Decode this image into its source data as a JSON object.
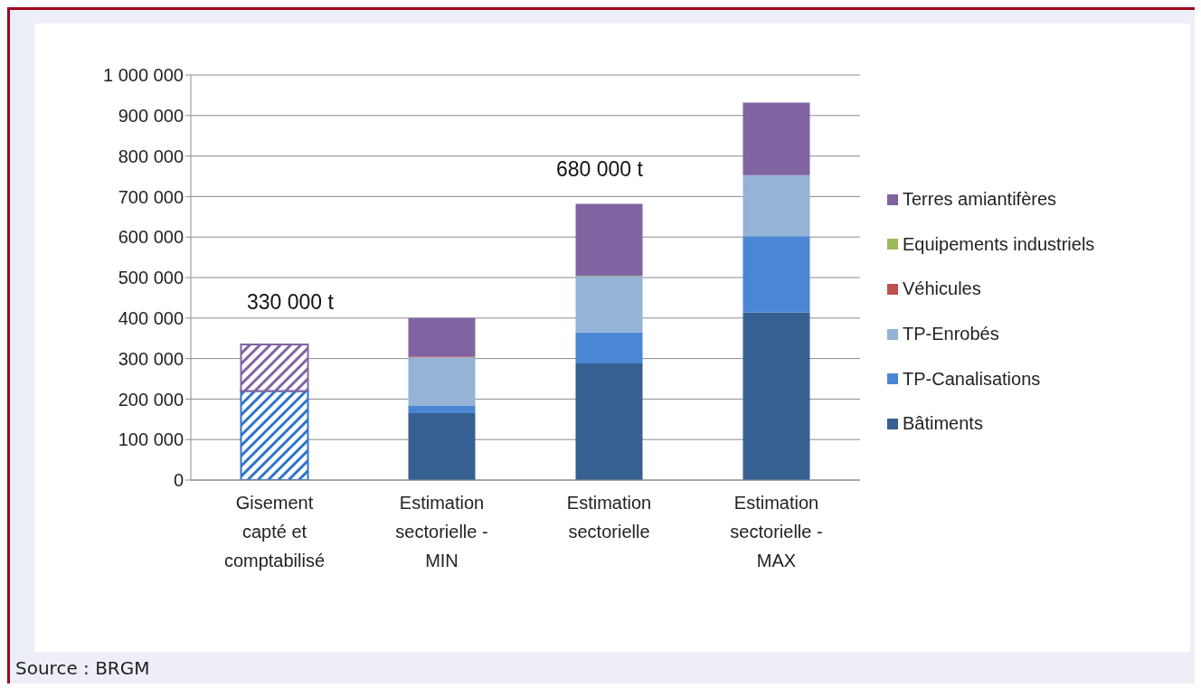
{
  "chart_data": {
    "type": "bar",
    "stacked": true,
    "categories": [
      "Gisement capté et comptabilisé",
      "Estimation sectorielle - MIN",
      "Estimation sectorielle",
      "Estimation sectorielle - MAX"
    ],
    "series": [
      {
        "color": "#2e75c8",
        "values": [
          220000,
          null,
          null,
          null
        ]
      },
      {
        "color": "#8064a2",
        "values": [
          115000,
          null,
          null,
          null
        ]
      },
      {
        "name": "Bâtiments",
        "color": "#376092",
        "values": [
          null,
          165000,
          288000,
          414000
        ]
      },
      {
        "name": "TP-Canalisations",
        "color": "#4a86d4",
        "values": [
          null,
          18000,
          77000,
          188000
        ]
      },
      {
        "name": "TP-Enrobés",
        "color": "#95b3d7",
        "values": [
          null,
          120000,
          137000,
          151000
        ]
      },
      {
        "name": "Véhicules",
        "color": "#c0504d",
        "values": [
          null,
          2000,
          0,
          0
        ]
      },
      {
        "name": "Equipements industriels",
        "color": "#9bbb59",
        "values": [
          null,
          0,
          2000,
          0
        ]
      },
      {
        "name": "Terres amiantifères",
        "color": "#8064a2",
        "values": [
          null,
          95000,
          178000,
          179000
        ]
      }
    ],
    "ylim": [
      0,
      1000000
    ],
    "yticks": [
      {
        "value": 0,
        "label": "0"
      },
      {
        "value": 100000,
        "label": "100 000"
      },
      {
        "value": 200000,
        "label": "200 000"
      },
      {
        "value": 300000,
        "label": "300 000"
      },
      {
        "value": 400000,
        "label": "400 000"
      },
      {
        "value": 500000,
        "label": "500 000"
      },
      {
        "value": 600000,
        "label": "600 000"
      },
      {
        "value": 700000,
        "label": "700 000"
      },
      {
        "value": 800000,
        "label": "800 000"
      },
      {
        "value": 900000,
        "label": "900 000"
      },
      {
        "value": 1000000,
        "label": "1 000 000"
      }
    ],
    "grid": "y",
    "legend": "right",
    "annotations": [
      "330 000 t",
      "680 000 t",
      "Source : BRGM"
    ]
  }
}
